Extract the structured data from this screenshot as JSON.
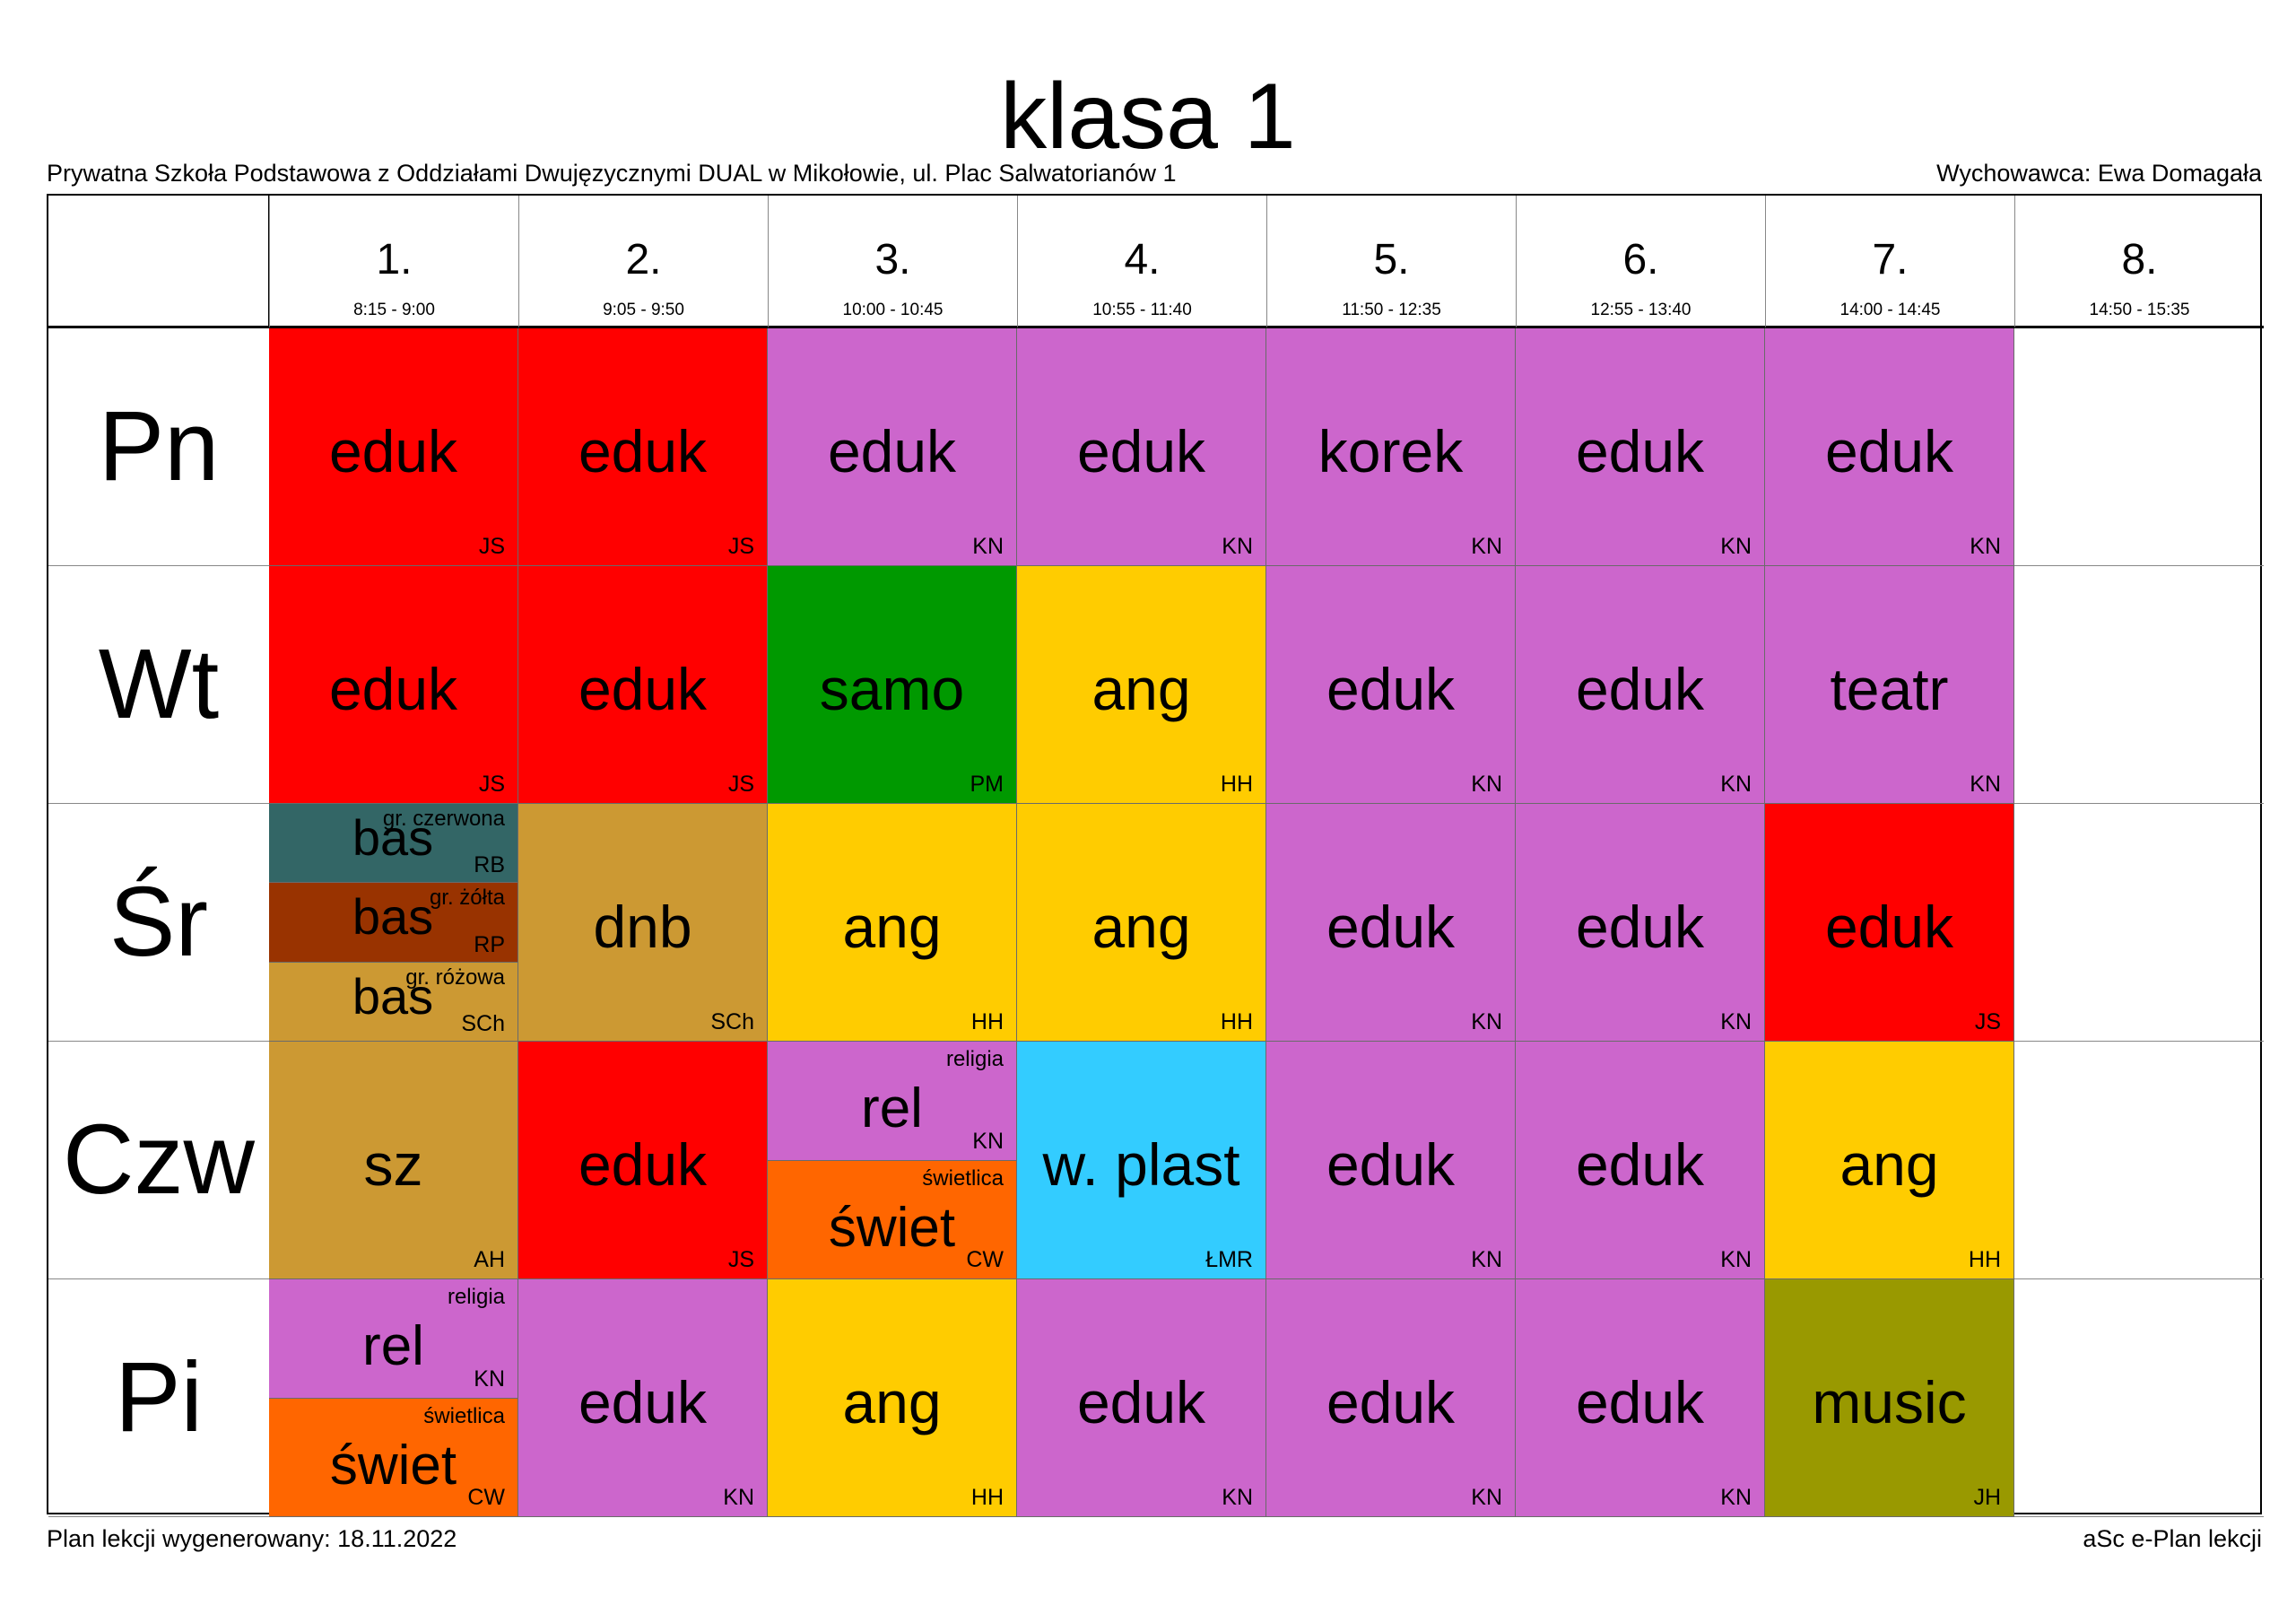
{
  "title": "klasa 1",
  "school": "Prywatna Szkoła Podstawowa z Oddziałami Dwujęzycznymi DUAL w Mikołowie, ul. Plac Salwatorianów 1",
  "teacher": "Wychowawca: Ewa Domagała",
  "footer_left": "Plan lekcji wygenerowany: 18.11.2022",
  "footer_right": "aSc e-Plan lekcji",
  "colors": {
    "red": "#ff0000",
    "violet": "#cc66cc",
    "green": "#009900",
    "yellow": "#ffcc00",
    "teal": "#336666",
    "brown": "#993300",
    "ochre": "#cc9933",
    "orange": "#ff6600",
    "cyan": "#33ccff",
    "olive": "#999900"
  },
  "periods": [
    {
      "num": "1.",
      "time": "8:15 - 9:00"
    },
    {
      "num": "2.",
      "time": "9:05 - 9:50"
    },
    {
      "num": "3.",
      "time": "10:00 - 10:45"
    },
    {
      "num": "4.",
      "time": "10:55 - 11:40"
    },
    {
      "num": "5.",
      "time": "11:50 - 12:35"
    },
    {
      "num": "6.",
      "time": "12:55 - 13:40"
    },
    {
      "num": "7.",
      "time": "14:00 - 14:45"
    },
    {
      "num": "8.",
      "time": "14:50 - 15:35"
    }
  ],
  "days": [
    {
      "name": "Pn",
      "lessons": [
        [
          {
            "subject": "eduk",
            "teacher": "JS",
            "color": "red"
          }
        ],
        [
          {
            "subject": "eduk",
            "teacher": "JS",
            "color": "red"
          }
        ],
        [
          {
            "subject": "eduk",
            "teacher": "KN",
            "color": "violet"
          }
        ],
        [
          {
            "subject": "eduk",
            "teacher": "KN",
            "color": "violet"
          }
        ],
        [
          {
            "subject": "korek",
            "teacher": "KN",
            "color": "violet"
          }
        ],
        [
          {
            "subject": "eduk",
            "teacher": "KN",
            "color": "violet"
          }
        ],
        [
          {
            "subject": "eduk",
            "teacher": "KN",
            "color": "violet"
          }
        ],
        []
      ]
    },
    {
      "name": "Wt",
      "lessons": [
        [
          {
            "subject": "eduk",
            "teacher": "JS",
            "color": "red"
          }
        ],
        [
          {
            "subject": "eduk",
            "teacher": "JS",
            "color": "red"
          }
        ],
        [
          {
            "subject": "samo",
            "teacher": "PM",
            "color": "green"
          }
        ],
        [
          {
            "subject": "ang",
            "teacher": "HH",
            "color": "yellow"
          }
        ],
        [
          {
            "subject": "eduk",
            "teacher": "KN",
            "color": "violet"
          }
        ],
        [
          {
            "subject": "eduk",
            "teacher": "KN",
            "color": "violet"
          }
        ],
        [
          {
            "subject": "teatr",
            "teacher": "KN",
            "color": "violet"
          }
        ],
        []
      ]
    },
    {
      "name": "Śr",
      "lessons": [
        [
          {
            "subject": "bas",
            "teacher": "RB",
            "group": "gr. czerwona",
            "color": "teal"
          },
          {
            "subject": "bas",
            "teacher": "RP",
            "group": "gr. żółta",
            "color": "brown"
          },
          {
            "subject": "bas",
            "teacher": "SCh",
            "group": "gr. różowa",
            "color": "ochre"
          }
        ],
        [
          {
            "subject": "dnb",
            "teacher": "SCh",
            "color": "ochre"
          }
        ],
        [
          {
            "subject": "ang",
            "teacher": "HH",
            "color": "yellow"
          }
        ],
        [
          {
            "subject": "ang",
            "teacher": "HH",
            "color": "yellow"
          }
        ],
        [
          {
            "subject": "eduk",
            "teacher": "KN",
            "color": "violet"
          }
        ],
        [
          {
            "subject": "eduk",
            "teacher": "KN",
            "color": "violet"
          }
        ],
        [
          {
            "subject": "eduk",
            "teacher": "JS",
            "color": "red"
          }
        ],
        []
      ]
    },
    {
      "name": "Czw",
      "lessons": [
        [
          {
            "subject": "sz",
            "teacher": "AH",
            "color": "ochre"
          }
        ],
        [
          {
            "subject": "eduk",
            "teacher": "JS",
            "color": "red"
          }
        ],
        [
          {
            "subject": "rel",
            "teacher": "KN",
            "group": "religia",
            "color": "violet"
          },
          {
            "subject": "świet",
            "teacher": "CW",
            "group": "świetlica",
            "color": "orange"
          }
        ],
        [
          {
            "subject": "w. plast",
            "teacher": "ŁMR",
            "color": "cyan"
          }
        ],
        [
          {
            "subject": "eduk",
            "teacher": "KN",
            "color": "violet"
          }
        ],
        [
          {
            "subject": "eduk",
            "teacher": "KN",
            "color": "violet"
          }
        ],
        [
          {
            "subject": "ang",
            "teacher": "HH",
            "color": "yellow"
          }
        ],
        []
      ]
    },
    {
      "name": "Pi",
      "lessons": [
        [
          {
            "subject": "rel",
            "teacher": "KN",
            "group": "religia",
            "color": "violet"
          },
          {
            "subject": "świet",
            "teacher": "CW",
            "group": "świetlica",
            "color": "orange"
          }
        ],
        [
          {
            "subject": "eduk",
            "teacher": "KN",
            "color": "violet"
          }
        ],
        [
          {
            "subject": "ang",
            "teacher": "HH",
            "color": "yellow"
          }
        ],
        [
          {
            "subject": "eduk",
            "teacher": "KN",
            "color": "violet"
          }
        ],
        [
          {
            "subject": "eduk",
            "teacher": "KN",
            "color": "violet"
          }
        ],
        [
          {
            "subject": "eduk",
            "teacher": "KN",
            "color": "violet"
          }
        ],
        [
          {
            "subject": "music",
            "teacher": "JH",
            "color": "olive"
          }
        ],
        []
      ]
    }
  ]
}
